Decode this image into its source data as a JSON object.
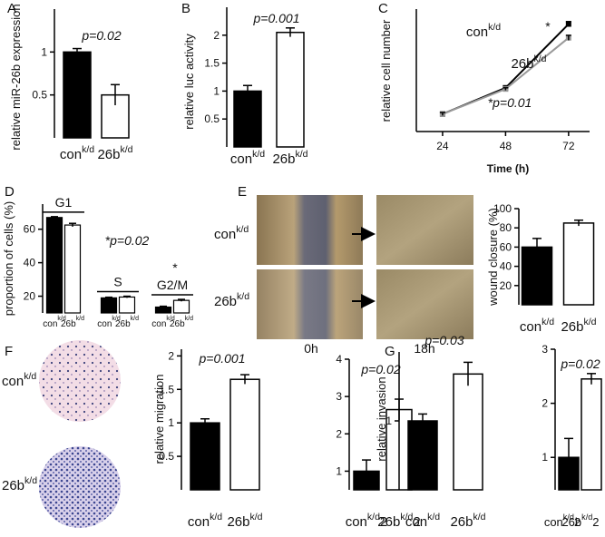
{
  "panel_labels": [
    "A",
    "B",
    "C",
    "D",
    "E",
    "F",
    "G"
  ],
  "images": {
    "wound": {
      "rows": [
        {
          "name": "con",
          "superscript": "k/d"
        },
        {
          "name": "26b",
          "superscript": "k/d"
        }
      ],
      "columns": [
        "0h",
        "18h"
      ]
    },
    "transwell": {
      "rows": [
        {
          "name": "con",
          "superscript": "k/d"
        },
        {
          "name": "26b",
          "superscript": "k/d"
        }
      ]
    }
  },
  "chart_data": [
    {
      "type": "bar",
      "ylabel": "relative miR-26b expression",
      "annotations": [
        "p=0.02"
      ],
      "categories": [
        "con",
        "26b"
      ],
      "category_superscripts": [
        "k/d",
        "k/d"
      ],
      "values": [
        1.0,
        0.5
      ],
      "errors": [
        0.04,
        0.12
      ],
      "colors": [
        "#000000",
        "#ffffff"
      ],
      "ylim": [
        0,
        1.5
      ],
      "yticks": [
        0.5,
        1
      ]
    },
    {
      "type": "bar",
      "ylabel": "relative luc activity",
      "annotations": [
        "p=0.001"
      ],
      "categories": [
        "con",
        "26b"
      ],
      "category_superscripts": [
        "k/d",
        "k/d"
      ],
      "values": [
        1.0,
        2.05
      ],
      "errors": [
        0.1,
        0.08
      ],
      "colors": [
        "#000000",
        "#ffffff"
      ],
      "ylim": [
        0,
        2.5
      ],
      "yticks": [
        0.5,
        1,
        1.5,
        2
      ]
    },
    {
      "type": "line",
      "ylabel": "relative cell number",
      "xlabel": "Time (h)",
      "annotations": [
        "*p=0.01",
        "*"
      ],
      "x": [
        24,
        48,
        72
      ],
      "xlim": [
        14,
        80
      ],
      "xticks": [
        24,
        48,
        72
      ],
      "ylim": [
        0.3,
        5.2
      ],
      "series": [
        {
          "name": "con",
          "name_superscript": "k/d",
          "color": "#000000",
          "values": [
            1.0,
            2.05,
            4.6
          ],
          "errors": [
            0.08,
            0.06,
            0.1
          ]
        },
        {
          "name": "26b",
          "name_superscript": "k/d",
          "color": "#999999",
          "values": [
            1.0,
            2.0,
            4.05
          ],
          "errors": [
            0.06,
            0.05,
            0.1
          ]
        }
      ]
    },
    {
      "type": "grouped_bar",
      "ylabel": "proportion of cells (%)",
      "annotations": [
        "*p=0.02",
        "*"
      ],
      "categories": [
        "G1",
        "S",
        "G2/M"
      ],
      "series": [
        {
          "name": "con",
          "name_superscript": "k/d",
          "color": "#000000",
          "values": [
            67,
            19,
            13.5
          ],
          "errors": [
            0.5,
            0.4,
            0.5
          ]
        },
        {
          "name": "26b",
          "name_superscript": "k/d",
          "color": "#ffffff",
          "values": [
            62.5,
            19.5,
            17.5
          ],
          "errors": [
            1,
            0.5,
            0.6
          ]
        }
      ],
      "ylim": [
        10,
        75
      ],
      "yticks": [
        20,
        40,
        60
      ]
    },
    {
      "type": "bar",
      "ylabel": "wound closure (%)",
      "categories": [
        "con",
        "26b"
      ],
      "category_superscripts": [
        "k/d",
        "k/d"
      ],
      "values": [
        60,
        85
      ],
      "errors": [
        9,
        3
      ],
      "colors": [
        "#000000",
        "#ffffff"
      ],
      "ylim": [
        0,
        100
      ],
      "yticks": [
        20,
        40,
        60,
        80,
        100
      ]
    },
    {
      "type": "bar",
      "ylabel": "relative migration",
      "annotations": [
        "p=0.001"
      ],
      "categories": [
        "con",
        "26b"
      ],
      "category_superscripts": [
        "k/d",
        "k/d"
      ],
      "values": [
        1.0,
        1.65
      ],
      "errors": [
        0.06,
        0.07
      ],
      "colors": [
        "#000000",
        "#ffffff"
      ],
      "ylim": [
        0,
        2.1
      ],
      "yticks": [
        0.5,
        1,
        1.5,
        2
      ]
    },
    {
      "type": "bar",
      "annotations": [
        "p=0.02"
      ],
      "categories": [
        "con",
        "26b"
      ],
      "category_superscripts": [
        "k/d",
        "k/d"
      ],
      "category_suffixes": [
        "2",
        "2"
      ],
      "values": [
        1.0,
        2.65
      ],
      "errors": [
        0.3,
        0.28
      ],
      "colors": [
        "#000000",
        "#ffffff"
      ],
      "ylim": [
        0.5,
        4
      ],
      "yticks": [
        1,
        2,
        3,
        4
      ]
    },
    {
      "type": "bar",
      "ylabel": "relative invasion",
      "annotations": [
        "p=0.03"
      ],
      "categories": [
        "con",
        "26b"
      ],
      "category_superscripts": [
        "k/d",
        "k/d"
      ],
      "values": [
        1.0,
        1.68
      ],
      "errors": [
        0.1,
        0.17
      ],
      "colors": [
        "#000000",
        "#ffffff"
      ],
      "ylim": [
        0,
        2
      ],
      "yticks": [
        1
      ]
    },
    {
      "type": "bar",
      "annotations": [
        "p=0.02"
      ],
      "categories": [
        "con",
        "26b"
      ],
      "category_superscripts": [
        "k/d",
        "k/d"
      ],
      "category_suffixes": [
        "2",
        "2"
      ],
      "values": [
        1.0,
        2.45
      ],
      "errors": [
        0.35,
        0.1
      ],
      "colors": [
        "#000000",
        "#ffffff"
      ],
      "ylim": [
        0.4,
        3
      ],
      "yticks": [
        1,
        2,
        3
      ]
    }
  ]
}
